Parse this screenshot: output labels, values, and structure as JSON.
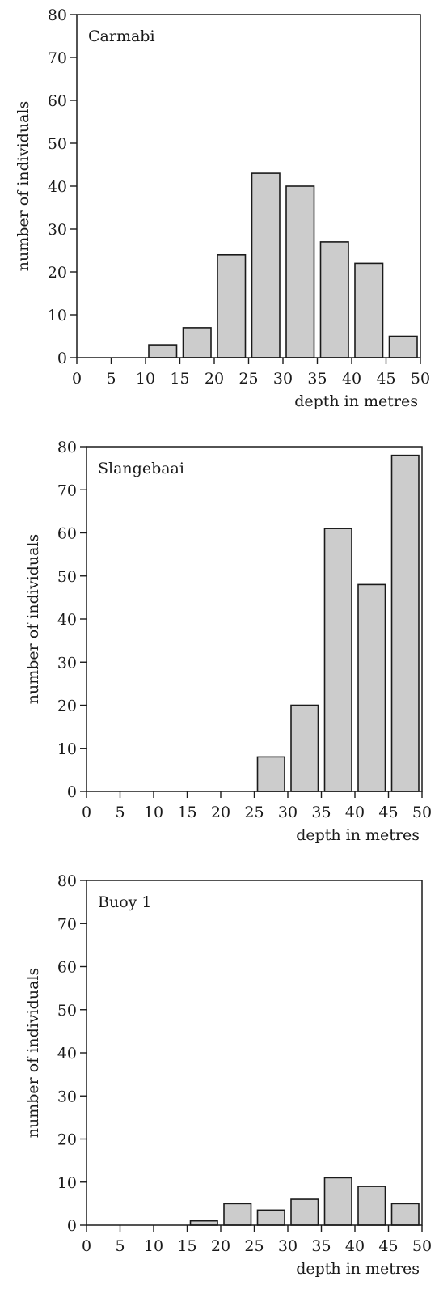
{
  "chart_data": [
    {
      "type": "bar",
      "title": "Carmabi",
      "xlabel": "depth in metres",
      "ylabel": "number of individuals",
      "xlim": [
        0,
        50
      ],
      "ylim": [
        0,
        80
      ],
      "x_ticks": [
        "0",
        "5",
        "10",
        "15",
        "20",
        "25",
        "30",
        "35",
        "40",
        "45",
        "50"
      ],
      "y_ticks": [
        "0",
        "10",
        "20",
        "30",
        "40",
        "50",
        "60",
        "70",
        "80"
      ],
      "bins": [
        [
          10,
          15
        ],
        [
          15,
          20
        ],
        [
          20,
          25
        ],
        [
          25,
          30
        ],
        [
          30,
          35
        ],
        [
          35,
          40
        ],
        [
          40,
          45
        ],
        [
          45,
          50
        ]
      ],
      "values": [
        3,
        7,
        24,
        43,
        40,
        27,
        22,
        5
      ],
      "grid": false,
      "legend": "none",
      "bar_color": "#cccccc"
    },
    {
      "type": "bar",
      "title": "Slangebaai",
      "xlabel": "depth in metres",
      "ylabel": "number of individuals",
      "xlim": [
        0,
        50
      ],
      "ylim": [
        0,
        80
      ],
      "x_ticks": [
        "0",
        "5",
        "10",
        "15",
        "20",
        "25",
        "30",
        "35",
        "40",
        "45",
        "50"
      ],
      "y_ticks": [
        "0",
        "10",
        "20",
        "30",
        "40",
        "50",
        "60",
        "70",
        "80"
      ],
      "bins": [
        [
          25,
          30
        ],
        [
          30,
          35
        ],
        [
          35,
          40
        ],
        [
          40,
          45
        ],
        [
          45,
          50
        ]
      ],
      "values": [
        8,
        20,
        61,
        48,
        78
      ],
      "grid": false,
      "legend": "none",
      "bar_color": "#cccccc"
    },
    {
      "type": "bar",
      "title": "Buoy 1",
      "xlabel": "depth in metres",
      "ylabel": "number of individuals",
      "xlim": [
        0,
        50
      ],
      "ylim": [
        0,
        80
      ],
      "x_ticks": [
        "0",
        "5",
        "10",
        "15",
        "20",
        "25",
        "30",
        "35",
        "40",
        "45",
        "50"
      ],
      "y_ticks": [
        "0",
        "10",
        "20",
        "30",
        "40",
        "50",
        "60",
        "70",
        "80"
      ],
      "bins": [
        [
          15,
          20
        ],
        [
          20,
          25
        ],
        [
          25,
          30
        ],
        [
          30,
          35
        ],
        [
          35,
          40
        ],
        [
          40,
          45
        ],
        [
          45,
          50
        ]
      ],
      "values": [
        1,
        5,
        3.5,
        6,
        11,
        9,
        5
      ],
      "grid": false,
      "legend": "none",
      "bar_color": "#cccccc"
    }
  ]
}
